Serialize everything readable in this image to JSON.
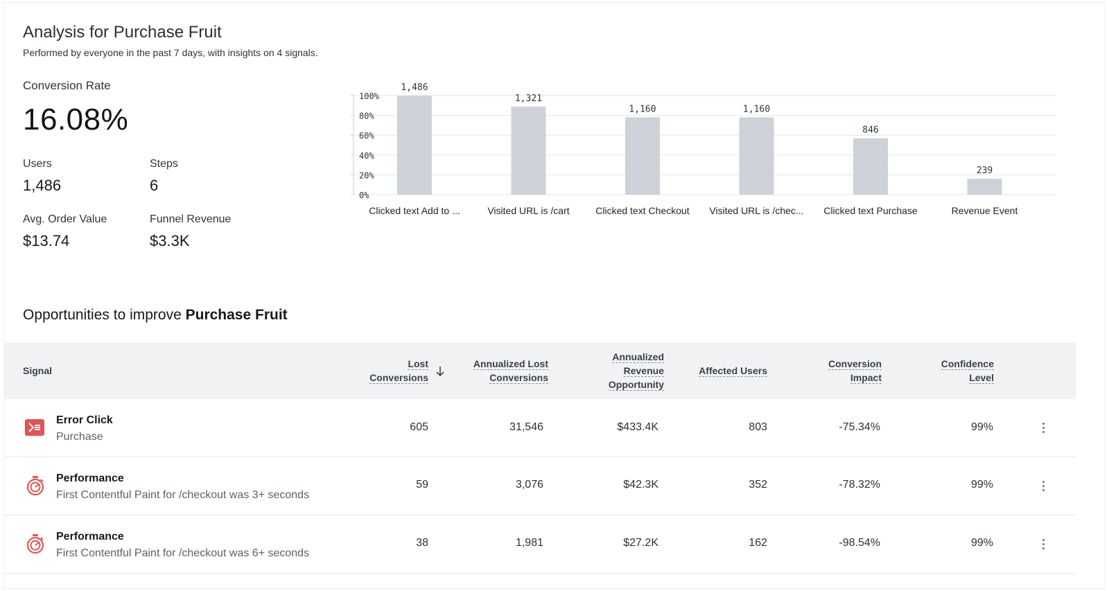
{
  "header": {
    "title": "Analysis for Purchase Fruit",
    "subtitle": "Performed by everyone in the past 7 days, with insights on 4 signals."
  },
  "kpis": {
    "conversion_rate_label": "Conversion Rate",
    "conversion_rate_value": "16.08%",
    "users_label": "Users",
    "users_value": "1,486",
    "steps_label": "Steps",
    "steps_value": "6",
    "aov_label": "Avg. Order Value",
    "aov_value": "$13.74",
    "funnel_revenue_label": "Funnel Revenue",
    "funnel_revenue_value": "$3.3K"
  },
  "chart_data": {
    "type": "bar",
    "categories": [
      "Clicked text Add to ...",
      "Visited URL is /cart",
      "Clicked text Checkout",
      "Visited URL is /chec...",
      "Clicked text Purchase",
      "Revenue Event"
    ],
    "values": [
      1486,
      1321,
      1160,
      1160,
      846,
      239
    ],
    "value_labels": [
      "1,486",
      "1,321",
      "1,160",
      "1,160",
      "846",
      "239"
    ],
    "y_ticks": [
      "100%",
      "80%",
      "60%",
      "40%",
      "20%",
      "0%"
    ],
    "ylim": [
      0,
      1486
    ],
    "grid": true,
    "bar_color": "#ccd2d7"
  },
  "opportunities": {
    "title_prefix": "Opportunities to improve ",
    "title_bold": "Purchase Fruit",
    "columns": {
      "signal": "Signal",
      "lost_1": "Lost",
      "lost_2": "Conversions",
      "ann_lost_1": "Annualized Lost",
      "ann_lost_2": "Conversions",
      "ann_rev_1": "Annualized",
      "ann_rev_2": "Revenue",
      "ann_rev_3": "Opportunity",
      "affected": "Affected Users",
      "impact_1": "Conversion",
      "impact_2": "Impact",
      "confidence_1": "Confidence",
      "confidence_2": "Level"
    },
    "rows": [
      {
        "icon": "error-click-icon",
        "title": "Error Click",
        "subtitle": "Purchase",
        "lost": "605",
        "annual_lost": "31,546",
        "revenue": "$433.4K",
        "affected": "803",
        "impact": "-75.34%",
        "confidence": "99%"
      },
      {
        "icon": "stopwatch-icon",
        "title": "Performance",
        "subtitle": "First Contentful Paint for /checkout was 3+ seconds",
        "lost": "59",
        "annual_lost": "3,076",
        "revenue": "$42.3K",
        "affected": "352",
        "impact": "-78.32%",
        "confidence": "99%"
      },
      {
        "icon": "stopwatch-icon",
        "title": "Performance",
        "subtitle": "First Contentful Paint for /checkout was 6+ seconds",
        "lost": "38",
        "annual_lost": "1,981",
        "revenue": "$27.2K",
        "affected": "162",
        "impact": "-98.54%",
        "confidence": "99%"
      }
    ]
  },
  "colors": {
    "icon_red": "#e05454",
    "header_bg": "#f1f2f4"
  }
}
